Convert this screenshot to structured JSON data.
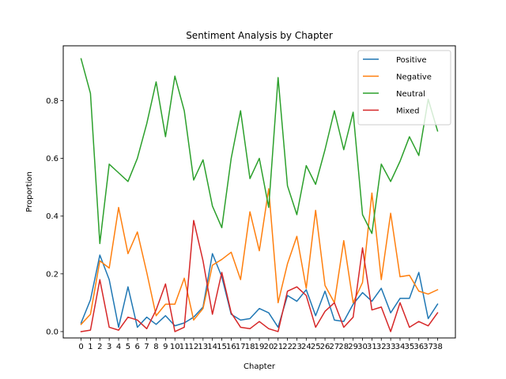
{
  "chart_data": {
    "type": "line",
    "title": "Sentiment Analysis by Chapter",
    "xlabel": "Chapter",
    "ylabel": "Proportion",
    "x": [
      0,
      1,
      2,
      3,
      4,
      5,
      6,
      7,
      8,
      9,
      10,
      11,
      12,
      13,
      14,
      15,
      16,
      17,
      18,
      19,
      20,
      21,
      22,
      23,
      24,
      25,
      26,
      27,
      28,
      29,
      30,
      31,
      32,
      33,
      34,
      35,
      36,
      37,
      38
    ],
    "ylim": [
      -0.022,
      0.99
    ],
    "yticks": [
      0.0,
      0.2,
      0.4,
      0.6,
      0.8
    ],
    "ytick_labels": [
      "0.0",
      "0.2",
      "0.4",
      "0.6",
      "0.8"
    ],
    "grid": false,
    "legend_position": "top-right",
    "series": [
      {
        "name": "Positive",
        "color": "#1f77b4",
        "values": [
          0.03,
          0.11,
          0.265,
          0.18,
          0.015,
          0.155,
          0.015,
          0.05,
          0.025,
          0.055,
          0.02,
          0.03,
          0.05,
          0.085,
          0.27,
          0.19,
          0.06,
          0.04,
          0.045,
          0.08,
          0.065,
          0.015,
          0.125,
          0.105,
          0.145,
          0.055,
          0.14,
          0.04,
          0.035,
          0.095,
          0.135,
          0.105,
          0.15,
          0.065,
          0.115,
          0.115,
          0.205,
          0.045,
          0.095
        ]
      },
      {
        "name": "Negative",
        "color": "#ff7f0e",
        "values": [
          0.025,
          0.06,
          0.245,
          0.22,
          0.43,
          0.27,
          0.345,
          0.205,
          0.055,
          0.095,
          0.095,
          0.185,
          0.04,
          0.08,
          0.23,
          0.25,
          0.275,
          0.18,
          0.415,
          0.28,
          0.495,
          0.1,
          0.235,
          0.33,
          0.15,
          0.42,
          0.16,
          0.1,
          0.315,
          0.1,
          0.17,
          0.48,
          0.18,
          0.41,
          0.19,
          0.195,
          0.14,
          0.13,
          0.145
        ]
      },
      {
        "name": "Neutral",
        "color": "#2ca02c",
        "values": [
          0.945,
          0.825,
          0.305,
          0.58,
          0.55,
          0.52,
          0.6,
          0.72,
          0.865,
          0.675,
          0.885,
          0.765,
          0.525,
          0.595,
          0.435,
          0.36,
          0.6,
          0.765,
          0.53,
          0.6,
          0.43,
          0.88,
          0.505,
          0.405,
          0.575,
          0.51,
          0.63,
          0.765,
          0.63,
          0.76,
          0.405,
          0.34,
          0.58,
          0.52,
          0.59,
          0.675,
          0.61,
          0.805,
          0.695
        ]
      },
      {
        "name": "Mixed",
        "color": "#d62728",
        "values": [
          0.0,
          0.005,
          0.18,
          0.015,
          0.005,
          0.05,
          0.04,
          0.01,
          0.075,
          0.165,
          0.0,
          0.015,
          0.385,
          0.245,
          0.06,
          0.205,
          0.065,
          0.015,
          0.01,
          0.035,
          0.01,
          0.0,
          0.14,
          0.155,
          0.125,
          0.015,
          0.07,
          0.1,
          0.015,
          0.05,
          0.29,
          0.075,
          0.085,
          0.0,
          0.1,
          0.015,
          0.035,
          0.02,
          0.065
        ]
      }
    ]
  }
}
